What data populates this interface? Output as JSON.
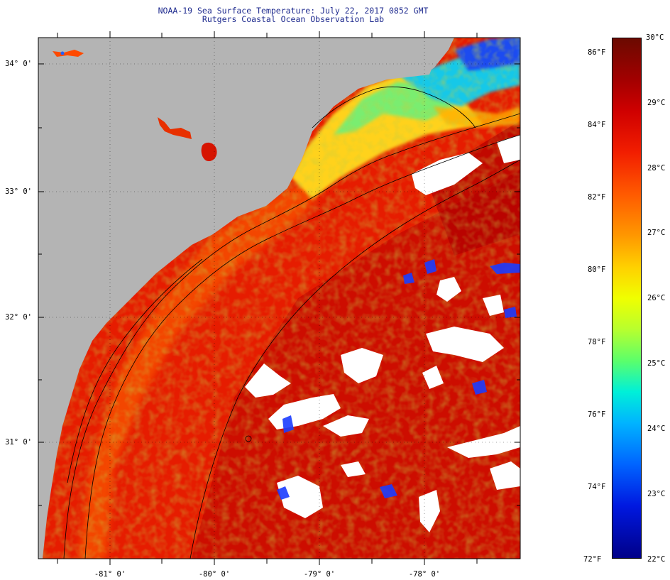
{
  "header": {
    "title": "NOAA-19 Sea Surface Temperature:  July 22, 2017 0852 GMT",
    "subtitle": "Rutgers Coastal Ocean Observation Lab"
  },
  "map": {
    "latitude_labels": [
      "34° 0'",
      "33° 0'",
      "32° 0'",
      "31° 0'"
    ],
    "longitude_labels": [
      "-81° 0'",
      "-80° 0'",
      "-79° 0'",
      "-78° 0'"
    ],
    "land_color": "#b4b4b4",
    "cloud_color": "#ffffff"
  },
  "colorbar": {
    "fahrenheit_labels": [
      "86°F",
      "84°F",
      "82°F",
      "80°F",
      "78°F",
      "76°F",
      "74°F",
      "72°F"
    ],
    "celsius_labels": [
      "30°C",
      "29°C",
      "28°C",
      "27°C",
      "26°C",
      "25°C",
      "24°C",
      "23°C",
      "22°C"
    ]
  }
}
